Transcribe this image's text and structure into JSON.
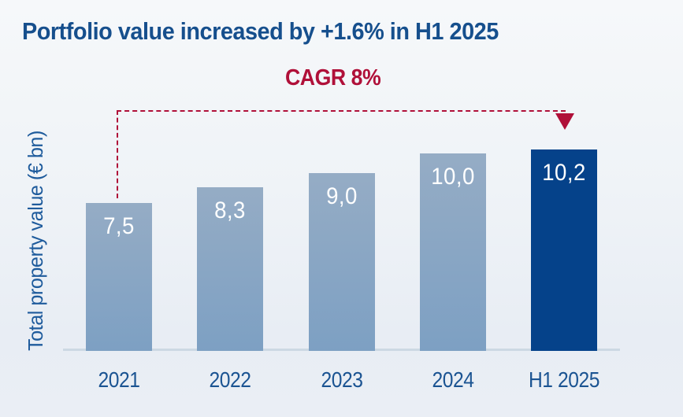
{
  "title": "Portfolio value increased by +1.6% in H1 2025",
  "colors": {
    "background_top": "#f6f8fa",
    "background_mid": "#eff3f7",
    "background_bottom": "#e8edf4",
    "title_text": "#164f8d",
    "axis_label_text": "#1e5b9c",
    "tick_label_text": "#1b5492",
    "bar_fill_top": "#95acc5",
    "bar_fill_bottom": "#7da0c3",
    "bar_highlight_fill": "#05428a",
    "value_label_text": "#ffffff",
    "accent_red": "#b01039",
    "baseline": "#ccd8e3"
  },
  "chart_data": {
    "type": "bar",
    "title": "Portfolio value increased by +1.6% in H1 2025",
    "categories": [
      "2021",
      "2022",
      "2023",
      "2024",
      "H1 2025"
    ],
    "values": [
      7.5,
      8.3,
      9.0,
      10.0,
      10.2
    ],
    "value_labels": [
      "7,5",
      "8,3",
      "9,0",
      "10,0",
      "10,2"
    ],
    "xlabel": "",
    "ylabel": "Total property value (€ bn)",
    "ylim": [
      0,
      11
    ],
    "grid": false,
    "legend": null,
    "highlight_index": 4,
    "highlight_category": "H1 2025",
    "annotations": [
      {
        "text": "CAGR 8%",
        "type": "dashed-arrow",
        "from_category": "2021",
        "to_category": "H1 2025"
      }
    ]
  }
}
